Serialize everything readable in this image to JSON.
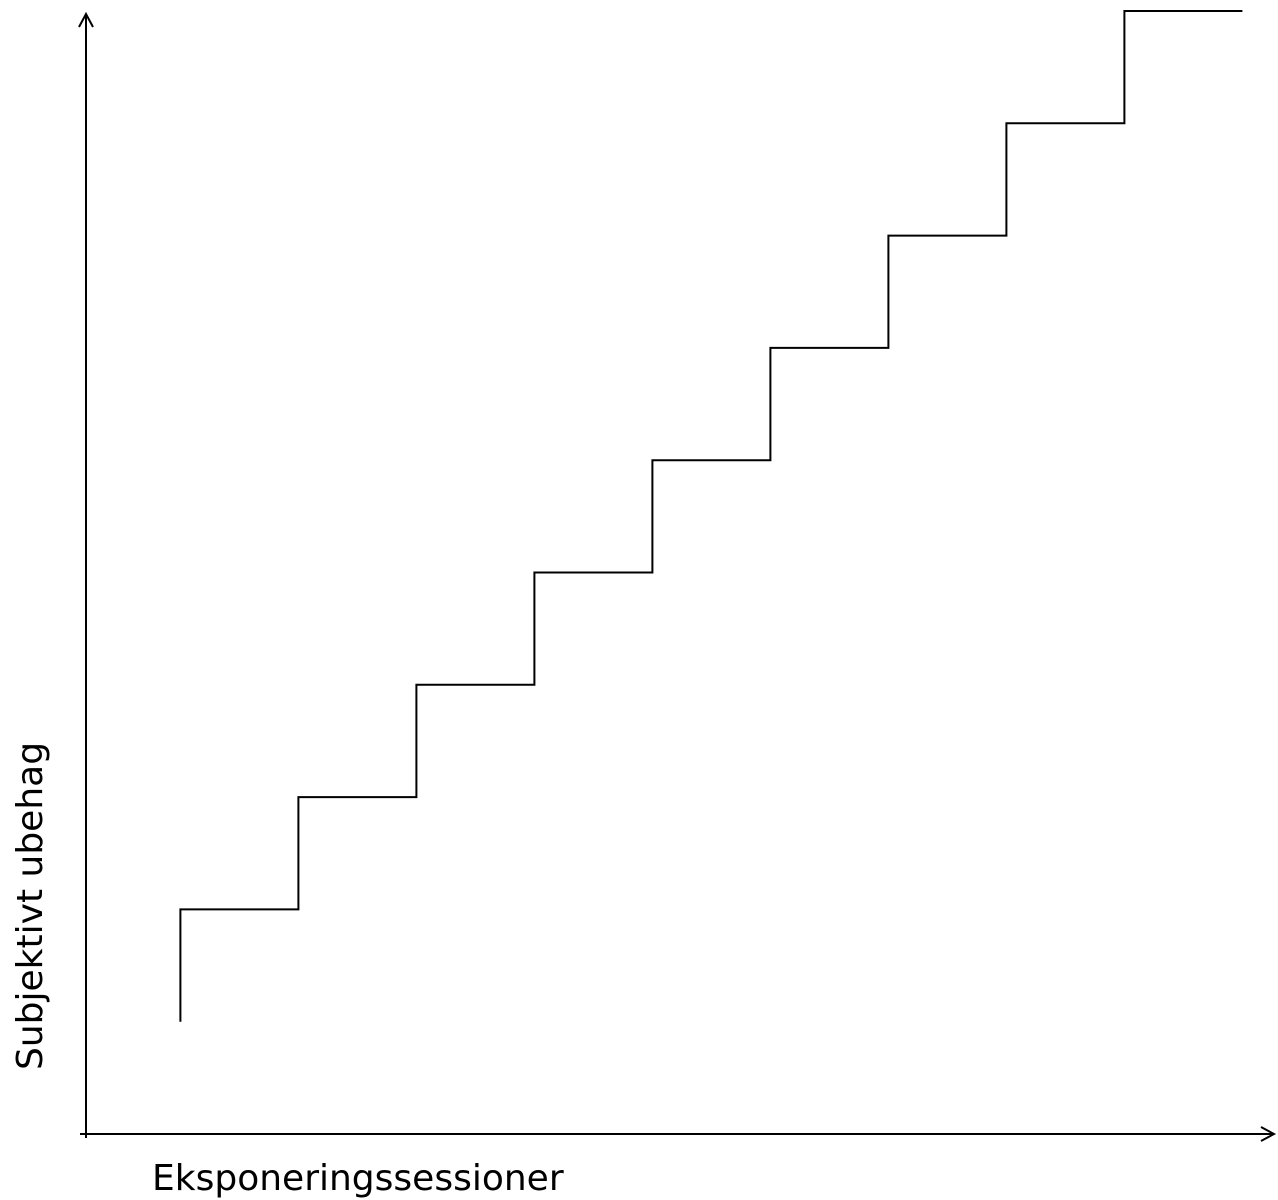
{
  "chart_data": {
    "type": "line",
    "step": true,
    "title": "",
    "xlabel": "Eksponeringssessioner",
    "ylabel": "Subjektivt ubehag",
    "grid": false,
    "legend": "none",
    "x_ticks": [],
    "y_ticks": [],
    "xlim": [
      0,
      100
    ],
    "ylim": [
      0,
      100
    ],
    "series": [
      {
        "x": [
          8,
          8,
          18,
          18,
          28,
          28,
          38,
          38,
          48,
          48,
          58,
          58,
          68,
          68,
          78,
          78,
          88,
          88,
          98
        ],
        "y": [
          10,
          20,
          20,
          30,
          30,
          40,
          40,
          50,
          50,
          60,
          60,
          70,
          70,
          80,
          80,
          90,
          90,
          100,
          100
        ]
      }
    ],
    "colors": {
      "line": "#000000",
      "axis": "#000000"
    }
  }
}
